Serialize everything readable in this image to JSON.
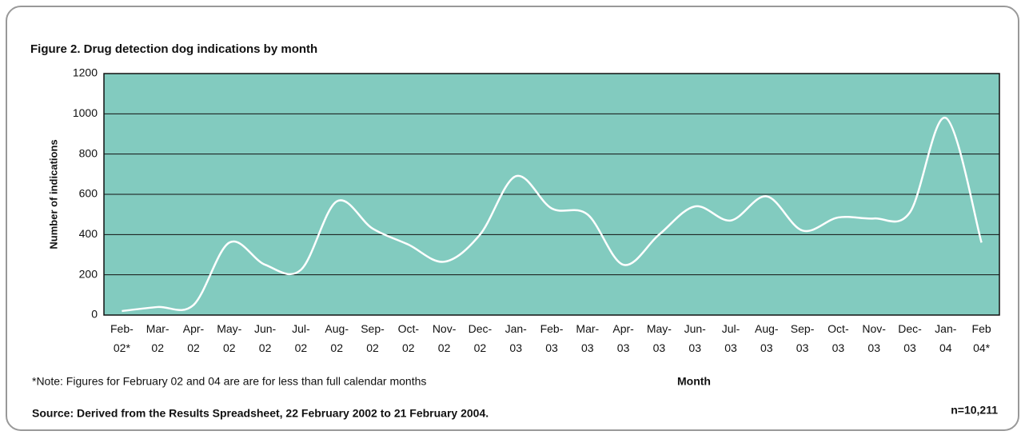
{
  "chart_data": {
    "type": "line",
    "title": "Figure 2. Drug detection dog indications by month",
    "y_label": "Number of indications",
    "x_label": "Month",
    "note": "*Note: Figures for February 02 and 04 are are for less than full calendar months",
    "source": "Source: Derived from the Results Spreadsheet, 22 February 2002 to 21 February 2004.",
    "sample_size": "n=10,211",
    "categories": [
      "Feb-\n02*",
      "Mar-\n02",
      "Apr-\n02",
      "May-\n02",
      "Jun-\n02",
      "Jul-\n02",
      "Aug-\n02",
      "Sep-\n02",
      "Oct-\n02",
      "Nov-\n02",
      "Dec-\n02",
      "Jan-\n03",
      "Feb-\n03",
      "Mar-\n03",
      "Apr-\n03",
      "May-\n03",
      "Jun-\n03",
      "Jul-\n03",
      "Aug-\n03",
      "Sep-\n03",
      "Oct-\n03",
      "Nov-\n03",
      "Dec-\n03",
      "Jan-\n04",
      "Feb\n04*"
    ],
    "values": [
      20,
      40,
      50,
      360,
      250,
      225,
      565,
      430,
      350,
      265,
      400,
      690,
      530,
      500,
      250,
      400,
      540,
      470,
      590,
      420,
      485,
      480,
      510,
      980,
      360
    ],
    "color": "#ffffff",
    "background": "#82cbbf",
    "ylim": [
      0,
      1200
    ],
    "yticks": [
      0,
      200,
      400,
      600,
      800,
      1000,
      1200
    ],
    "grid": true
  }
}
